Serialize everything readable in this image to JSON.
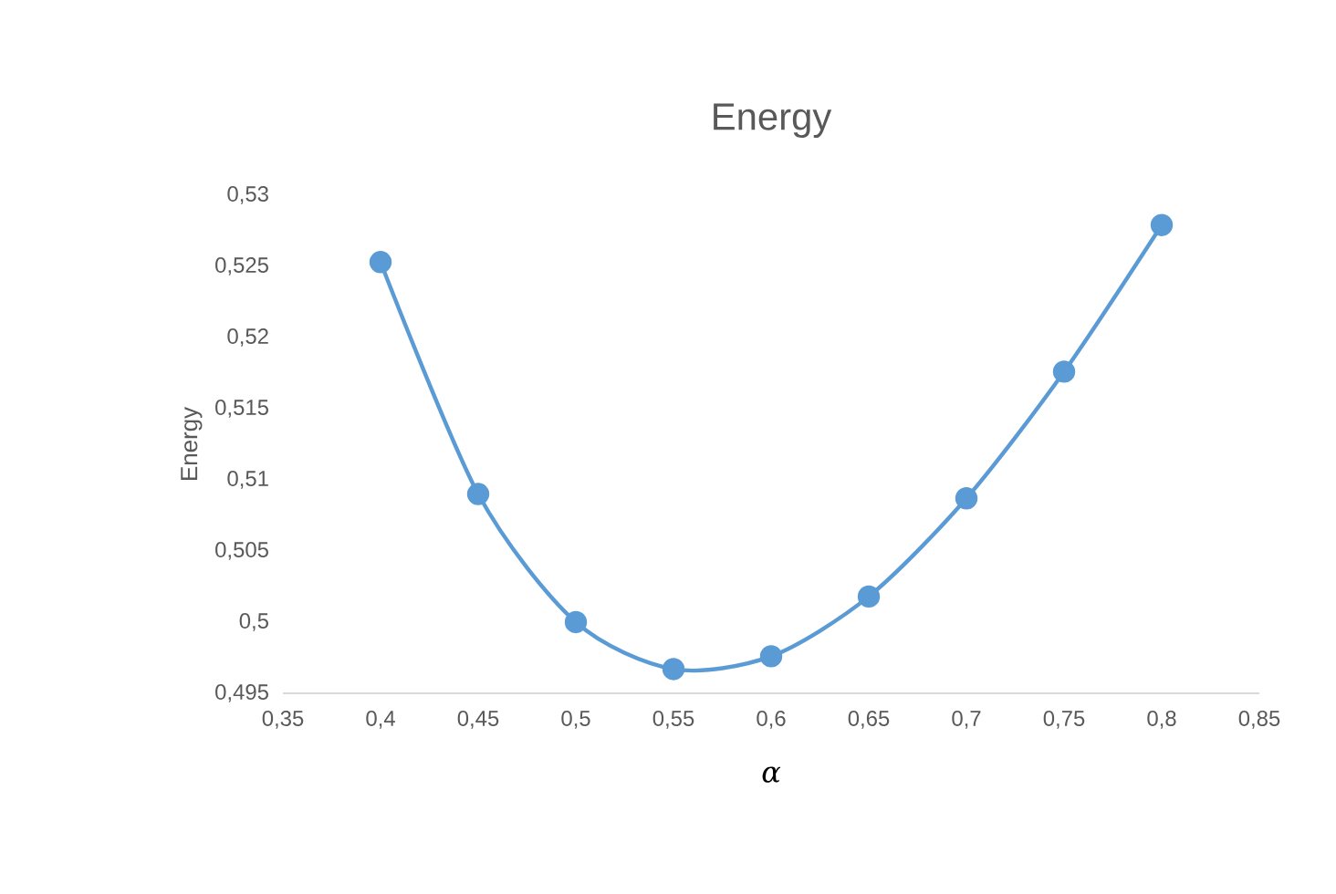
{
  "chart_data": {
    "type": "line",
    "title": "Energy",
    "xlabel": "α",
    "ylabel": "Energy",
    "x": [
      0.4,
      0.45,
      0.5,
      0.55,
      0.6,
      0.65,
      0.7,
      0.75,
      0.8
    ],
    "values": [
      0.5253,
      0.509,
      0.5,
      0.4967,
      0.4976,
      0.5018,
      0.5087,
      0.5176,
      0.5279
    ],
    "color": "#5b9bd5",
    "marker": "circle",
    "line_style": "solid",
    "xlim": [
      0.35,
      0.85
    ],
    "ylim": [
      0.495,
      0.53
    ],
    "xticks": [
      {
        "value": 0.35,
        "label": "0,35"
      },
      {
        "value": 0.4,
        "label": "0,4"
      },
      {
        "value": 0.45,
        "label": "0,45"
      },
      {
        "value": 0.5,
        "label": "0,5"
      },
      {
        "value": 0.55,
        "label": "0,55"
      },
      {
        "value": 0.6,
        "label": "0,6"
      },
      {
        "value": 0.65,
        "label": "0,65"
      },
      {
        "value": 0.7,
        "label": "0,7"
      },
      {
        "value": 0.75,
        "label": "0,75"
      },
      {
        "value": 0.8,
        "label": "0,8"
      },
      {
        "value": 0.85,
        "label": "0,85"
      }
    ],
    "yticks": [
      {
        "value": 0.495,
        "label": "0,495"
      },
      {
        "value": 0.5,
        "label": "0,5"
      },
      {
        "value": 0.505,
        "label": "0,505"
      },
      {
        "value": 0.51,
        "label": "0,51"
      },
      {
        "value": 0.515,
        "label": "0,515"
      },
      {
        "value": 0.52,
        "label": "0,52"
      },
      {
        "value": 0.525,
        "label": "0,525"
      },
      {
        "value": 0.53,
        "label": "0,53"
      }
    ]
  }
}
